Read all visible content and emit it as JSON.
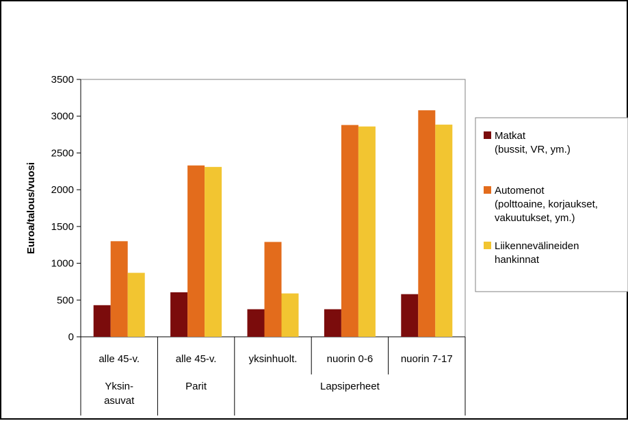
{
  "chart_data": {
    "type": "bar",
    "ylabel": "Euroa/talous/vuosi",
    "ylim": [
      0,
      3500
    ],
    "yticks": [
      0,
      500,
      1000,
      1500,
      2000,
      2500,
      3000,
      3500
    ],
    "grid": false,
    "legend_position": "right",
    "categories": [
      "alle 45-v.",
      "alle 45-v.",
      "yksinhuolt.",
      "nuorin 0-6",
      "nuorin 7-17"
    ],
    "groups": [
      {
        "label_lines": [
          "Yksin-",
          "asuvat"
        ],
        "span": [
          0,
          0
        ]
      },
      {
        "label_lines": [
          "Parit"
        ],
        "span": [
          1,
          1
        ]
      },
      {
        "label_lines": [
          "Lapsiperheet"
        ],
        "span": [
          2,
          4
        ]
      }
    ],
    "series": [
      {
        "name_lines": [
          "Matkat",
          "(bussit, VR, ym.)"
        ],
        "color": "#7B0C0C",
        "values": [
          430,
          605,
          375,
          375,
          580
        ]
      },
      {
        "name_lines": [
          "Automenot",
          "(polttoaine, korjaukset,",
          "vakuutukset, ym.)"
        ],
        "color": "#E36C1C",
        "values": [
          1300,
          2330,
          1290,
          2880,
          3080
        ]
      },
      {
        "name_lines": [
          "Liikennevälineiden",
          "hankinnat"
        ],
        "color": "#F2C531",
        "values": [
          870,
          2310,
          590,
          2860,
          2885
        ]
      }
    ]
  }
}
